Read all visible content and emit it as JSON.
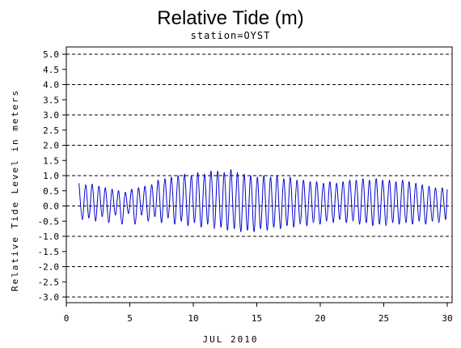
{
  "chart_data": {
    "type": "line",
    "title": "Relative Tide (m)",
    "subtitle": "station=OYST",
    "xlabel": "JUL 2010",
    "ylabel": "Relative Tide Level in meters",
    "xlim": [
      0,
      30
    ],
    "ylim": [
      -3.0,
      5.0
    ],
    "x_ticks": [
      0,
      5,
      10,
      15,
      20,
      25,
      30
    ],
    "x_tick_labels": [
      "0",
      "5",
      "10",
      "15",
      "20",
      "25",
      "30"
    ],
    "y_ticks": [
      5.0,
      4.5,
      4.0,
      3.5,
      3.0,
      2.5,
      2.0,
      1.5,
      1.0,
      0.5,
      0.0,
      -0.5,
      -1.0,
      -1.5,
      -2.0,
      -2.5,
      -3.0
    ],
    "y_tick_labels": [
      "5.0",
      "4.5",
      "4.0",
      "3.5",
      "3.0",
      "2.5",
      "2.0",
      "1.5",
      "1.0",
      "0.5",
      "0.0",
      "-0.5",
      "-1.0",
      "-1.5",
      "-2.0",
      "-2.5",
      "-3.0"
    ],
    "grid": "horizontal dashed at each whole meter",
    "gridlines_y": [
      5,
      4,
      3,
      2,
      1,
      0,
      -1,
      -2,
      -3
    ],
    "line_color": "#0000cc",
    "series": [
      {
        "x": [
          1.0,
          1.26,
          1.52,
          1.78,
          2.04,
          2.3,
          2.56,
          2.82,
          3.08,
          3.34,
          3.6,
          3.86,
          4.12,
          4.38,
          4.64,
          4.9,
          5.16,
          5.42,
          5.68,
          5.94,
          6.2,
          6.46,
          6.72,
          6.98,
          7.24,
          7.5,
          7.76,
          8.02,
          8.28,
          8.54,
          8.8,
          9.06,
          9.32,
          9.58,
          9.84,
          10.1,
          10.36,
          10.62,
          10.88,
          11.14,
          11.4,
          11.66,
          11.92,
          12.18,
          12.44,
          12.7,
          12.96,
          13.22,
          13.48,
          13.74,
          14.0,
          14.26,
          14.52,
          14.78,
          15.04,
          15.3,
          15.56,
          15.82,
          16.08,
          16.34,
          16.6,
          16.86,
          17.12,
          17.38,
          17.64,
          17.9,
          18.16,
          18.42,
          18.68,
          18.94,
          19.2,
          19.46,
          19.72,
          19.98,
          20.24,
          20.5,
          20.76,
          21.02,
          21.28,
          21.54,
          21.8,
          22.06,
          22.32,
          22.58,
          22.84,
          23.1,
          23.36,
          23.62,
          23.88,
          24.14,
          24.4,
          24.66,
          24.92,
          25.18,
          25.44,
          25.7,
          25.96,
          26.22,
          26.48,
          26.74,
          27.0,
          27.26,
          27.52,
          27.78,
          28.04,
          28.3,
          28.56,
          28.82,
          29.08,
          29.34,
          29.6,
          29.86,
          30.0
        ],
        "y": [
          0.75,
          -0.45,
          0.7,
          -0.4,
          0.72,
          -0.5,
          0.65,
          -0.35,
          0.6,
          -0.55,
          0.55,
          -0.3,
          0.5,
          -0.6,
          0.45,
          -0.25,
          0.55,
          -0.6,
          0.6,
          -0.3,
          0.65,
          -0.5,
          0.7,
          -0.35,
          0.85,
          -0.55,
          0.9,
          -0.4,
          0.95,
          -0.6,
          1.0,
          -0.5,
          1.05,
          -0.65,
          1.0,
          -0.55,
          1.1,
          -0.7,
          1.05,
          -0.6,
          1.15,
          -0.75,
          1.15,
          -0.7,
          1.1,
          -0.8,
          1.2,
          -0.75,
          1.1,
          -0.85,
          1.05,
          -0.8,
          1.0,
          -0.85,
          0.95,
          -0.75,
          1.0,
          -0.8,
          0.95,
          -0.7,
          1.0,
          -0.75,
          0.9,
          -0.65,
          0.95,
          -0.7,
          0.85,
          -0.6,
          0.85,
          -0.65,
          0.8,
          -0.55,
          0.8,
          -0.6,
          0.75,
          -0.5,
          0.8,
          -0.55,
          0.75,
          -0.45,
          0.8,
          -0.55,
          0.85,
          -0.5,
          0.85,
          -0.6,
          0.9,
          -0.55,
          0.85,
          -0.65,
          0.9,
          -0.6,
          0.85,
          -0.65,
          0.85,
          -0.55,
          0.8,
          -0.6,
          0.85,
          -0.55,
          0.8,
          -0.6,
          0.75,
          -0.5,
          0.7,
          -0.6,
          0.65,
          -0.5,
          0.6,
          -0.55,
          0.6,
          -0.45,
          0.55
        ]
      }
    ]
  }
}
